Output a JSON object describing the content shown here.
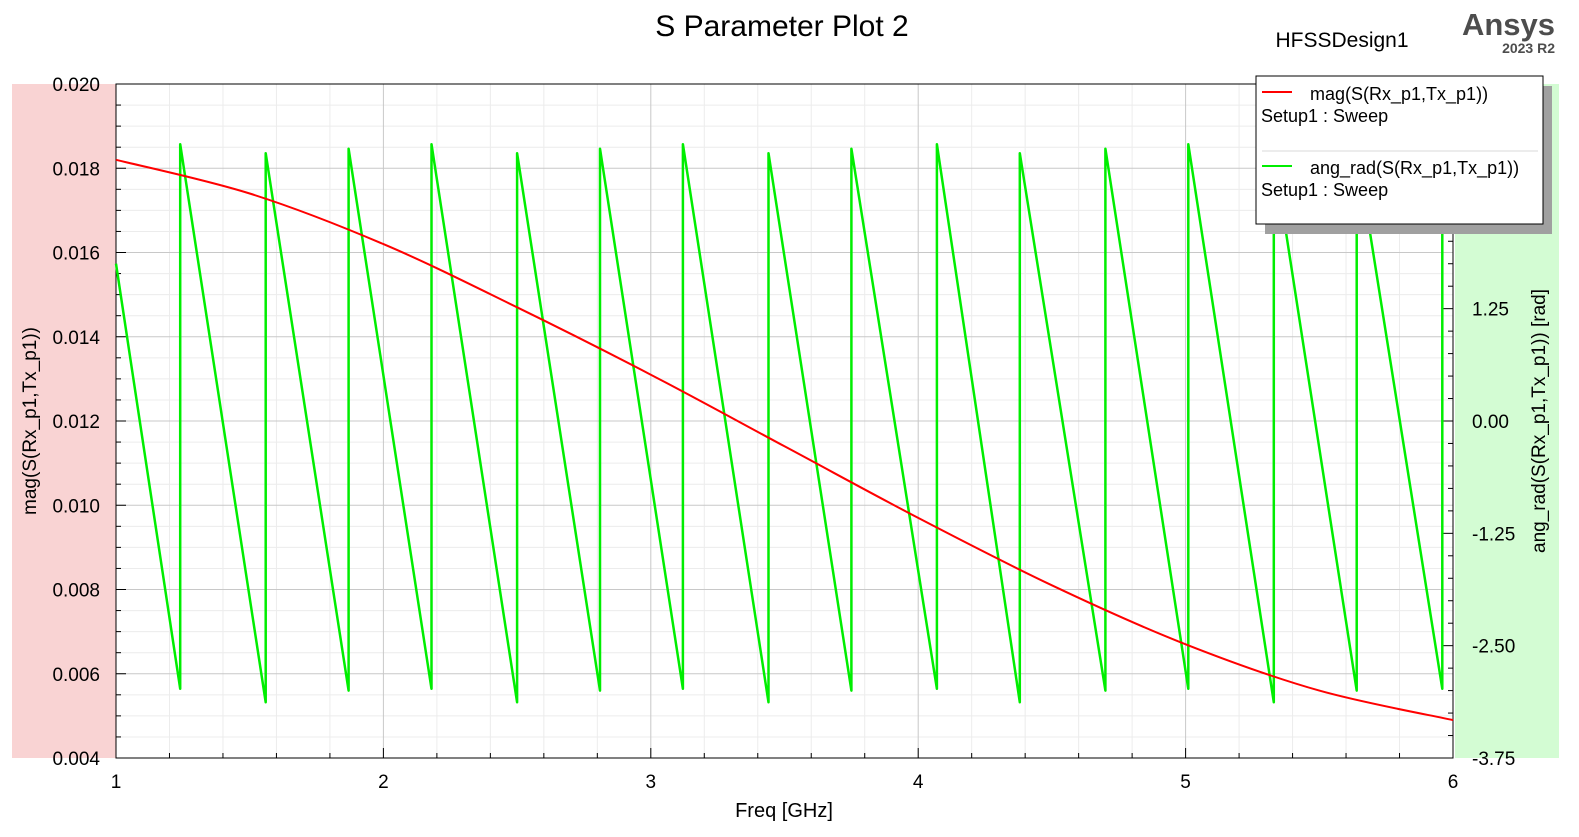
{
  "header": {
    "title": "S Parameter Plot 2",
    "design": "HFSSDesign1",
    "brand": "Ansys",
    "version": "2023 R2"
  },
  "colors": {
    "mag": "#ff0000",
    "ang": "#00ee00",
    "left_band": "#f9d3d3",
    "right_band": "#d3fcd3",
    "grid": "#c8c8c8"
  },
  "chart_data": {
    "type": "line",
    "title": "S Parameter Plot 2",
    "xlabel": "Freq [GHz]",
    "ylabel": "mag(S(Rx_p1,Tx_p1))",
    "y2label": "ang_rad(S(Rx_p1,Tx_p1)) [rad]",
    "xlim": [
      1,
      6
    ],
    "ylim": [
      0.004,
      0.02
    ],
    "y2lim": [
      -3.75,
      3.75
    ],
    "xticks": [
      1,
      2,
      3,
      4,
      5,
      6
    ],
    "xtick_labels": [
      "1",
      "2",
      "3",
      "4",
      "5",
      "6"
    ],
    "yticks": [
      0.004,
      0.006,
      0.008,
      0.01,
      0.012,
      0.014,
      0.016,
      0.018,
      0.02
    ],
    "ytick_labels": [
      "0.004",
      "0.006",
      "0.008",
      "0.010",
      "0.012",
      "0.014",
      "0.016",
      "0.018",
      "0.020"
    ],
    "y2ticks": [
      -3.75,
      -2.5,
      -1.25,
      0,
      1.25
    ],
    "y2tick_labels": [
      "-3.75",
      "-2.50",
      "-1.25",
      "0.00",
      "1.25"
    ],
    "grid": true,
    "legend_position": "top-right",
    "series": [
      {
        "name": "mag(S(Rx_p1,Tx_p1))",
        "setup": "Setup1 : Sweep",
        "axis": "left",
        "color": "#ff0000",
        "x": [
          1,
          1.5,
          2,
          2.5,
          3,
          3.5,
          4,
          4.5,
          5,
          5.5,
          6
        ],
        "y": [
          0.0182,
          0.0174,
          0.0162,
          0.0147,
          0.0131,
          0.0114,
          0.0097,
          0.0081,
          0.0067,
          0.0056,
          0.0049
        ]
      },
      {
        "name": "ang_rad(S(Rx_p1,Tx_p1))",
        "setup": "Setup1 : Sweep",
        "axis": "right",
        "color": "#00ee00",
        "x": [
          1,
          1.24,
          1.24,
          1.56,
          1.56,
          1.87,
          1.87,
          2.18,
          2.18,
          2.5,
          2.5,
          2.81,
          2.81,
          3.12,
          3.12,
          3.44,
          3.44,
          3.75,
          3.75,
          4.07,
          4.07,
          4.38,
          4.38,
          4.7,
          4.7,
          5.01,
          5.01,
          5.33,
          5.33,
          5.64,
          5.64,
          5.96,
          5.96,
          6
        ],
        "y": [
          1.75,
          -2.98,
          3.08,
          -3.13,
          2.98,
          -3.0,
          3.03,
          -2.98,
          3.08,
          -3.13,
          2.98,
          -3.0,
          3.03,
          -2.98,
          3.08,
          -3.13,
          2.98,
          -3.0,
          3.03,
          -2.98,
          3.08,
          -3.13,
          2.98,
          -3.0,
          3.03,
          -2.98,
          3.08,
          -3.13,
          2.98,
          -3.0,
          3.03,
          -2.98,
          3.08,
          2.45
        ]
      }
    ]
  }
}
